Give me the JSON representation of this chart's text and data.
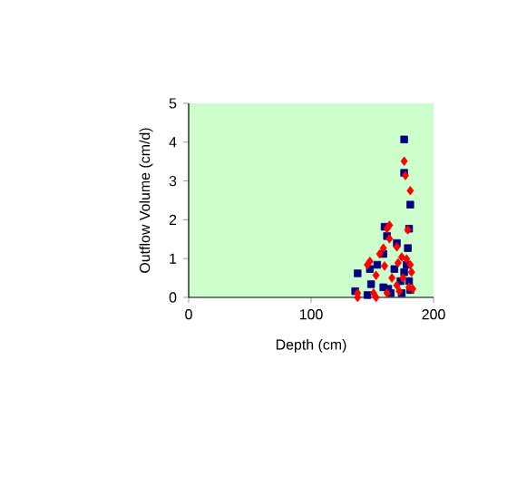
{
  "chart_data": {
    "type": "scatter",
    "xlabel": "Depth (cm)",
    "ylabel": "Outflow Volume (cm/d)",
    "xlim": [
      0,
      200
    ],
    "xticks": [
      0,
      100,
      200
    ],
    "ylim": [
      0,
      5
    ],
    "yticks": [
      0,
      1,
      2,
      3,
      4,
      5
    ],
    "grid": false,
    "series": [
      {
        "color": "#000080",
        "marker": "square",
        "x": [
          138,
          136,
          148,
          149,
          154,
          159,
          160,
          162,
          159,
          163,
          165,
          168,
          170,
          176,
          176,
          181,
          180,
          179,
          173,
          176,
          178,
          180,
          181,
          174,
          146
        ],
        "values": [
          0.62,
          0.16,
          0.73,
          0.34,
          0.84,
          0.26,
          1.82,
          1.58,
          1.12,
          0.22,
          0.11,
          0.73,
          1.4,
          4.07,
          3.21,
          2.39,
          1.77,
          1.27,
          0.42,
          0.65,
          0.84,
          0.42,
          0.19,
          0.11,
          0.06
        ]
      },
      {
        "color": "#ff0000",
        "marker": "diamond",
        "x": [
          138,
          138,
          146,
          148,
          151,
          153,
          153,
          156,
          159,
          160,
          162,
          164,
          164,
          166,
          170,
          171,
          170,
          176,
          177,
          181,
          179,
          174,
          178,
          181,
          182,
          175,
          180,
          183,
          172,
          162
        ],
        "values": [
          0.11,
          0.0,
          0.84,
          0.93,
          0.11,
          0.0,
          0.57,
          1.12,
          1.27,
          0.81,
          1.77,
          1.86,
          1.51,
          0.5,
          1.3,
          0.89,
          0.31,
          3.51,
          3.14,
          2.75,
          1.74,
          1.04,
          0.99,
          0.84,
          0.65,
          0.5,
          0.26,
          0.22,
          0.16,
          0.11
        ]
      }
    ]
  }
}
